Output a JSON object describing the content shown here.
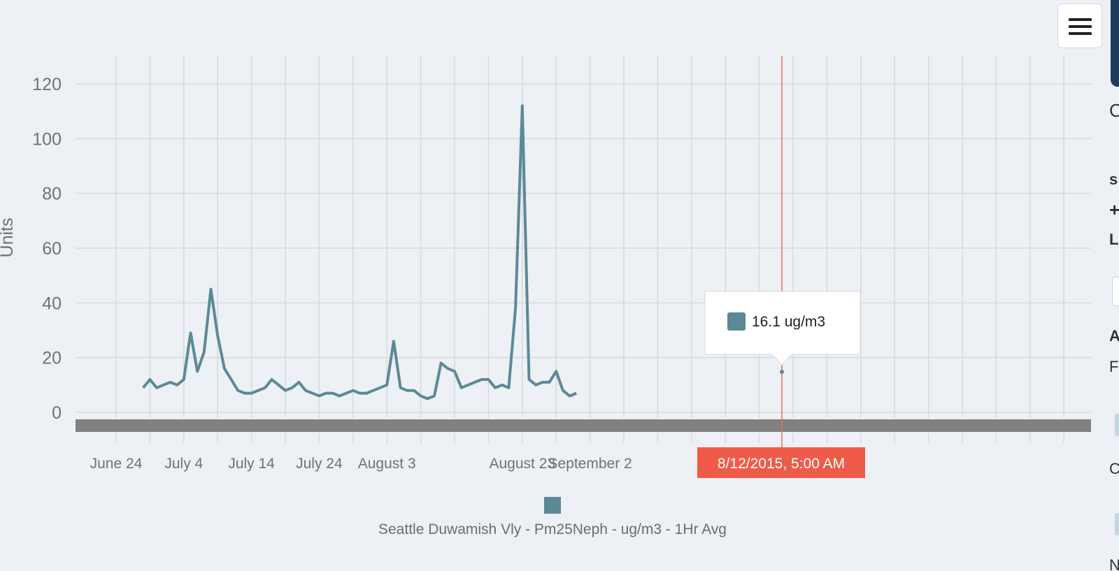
{
  "chart_data": {
    "type": "line",
    "ylabel": "Units",
    "ylim": [
      0,
      130
    ],
    "yticks": [
      0,
      20,
      40,
      60,
      80,
      100,
      120
    ],
    "xticks": [
      "June 24",
      "July 4",
      "July 14",
      "July 24",
      "August 3",
      "August 23",
      "September 2"
    ],
    "grid": true,
    "legend_position": "bottom-center",
    "series": [
      {
        "name": "Seattle Duwamish Vly - Pm25Neph - ug/m3 - 1Hr Avg",
        "color": "#5b8a96",
        "x": [
          "2015-06-28",
          "2015-06-29",
          "2015-06-30",
          "2015-07-01",
          "2015-07-02",
          "2015-07-03",
          "2015-07-04",
          "2015-07-05",
          "2015-07-06",
          "2015-07-07",
          "2015-07-08",
          "2015-07-09",
          "2015-07-10",
          "2015-07-11",
          "2015-07-12",
          "2015-07-13",
          "2015-07-14",
          "2015-07-15",
          "2015-07-16",
          "2015-07-17",
          "2015-07-18",
          "2015-07-19",
          "2015-07-20",
          "2015-07-21",
          "2015-07-22",
          "2015-07-23",
          "2015-07-24",
          "2015-07-25",
          "2015-07-26",
          "2015-07-27",
          "2015-07-28",
          "2015-07-29",
          "2015-07-30",
          "2015-07-31",
          "2015-08-01",
          "2015-08-02",
          "2015-08-03",
          "2015-08-04",
          "2015-08-05",
          "2015-08-06",
          "2015-08-07",
          "2015-08-08",
          "2015-08-09",
          "2015-08-10",
          "2015-08-11",
          "2015-08-12",
          "2015-08-13",
          "2015-08-14",
          "2015-08-15",
          "2015-08-16",
          "2015-08-17",
          "2015-08-18",
          "2015-08-19",
          "2015-08-20",
          "2015-08-21",
          "2015-08-22",
          "2015-08-23",
          "2015-08-24",
          "2015-08-25",
          "2015-08-26",
          "2015-08-27",
          "2015-08-28",
          "2015-08-29",
          "2015-08-30",
          "2015-08-31"
        ],
        "y": [
          9,
          12,
          9,
          10,
          11,
          10,
          12,
          29,
          15,
          22,
          45,
          28,
          16,
          12,
          8,
          7,
          7,
          8,
          9,
          12,
          10,
          8,
          9,
          11,
          8,
          7,
          6,
          7,
          7,
          6,
          7,
          8,
          7,
          7,
          8,
          9,
          10,
          26,
          9,
          8,
          8,
          6,
          5,
          6,
          18,
          16,
          15,
          9,
          10,
          11,
          12,
          12,
          9,
          10,
          9,
          38,
          112,
          12,
          10,
          11,
          11,
          15,
          8,
          6,
          7
        ]
      }
    ]
  },
  "crosshair": {
    "label": "8/12/2015, 5:00 AM"
  },
  "tooltip": {
    "text": "16.1 ug/m3"
  },
  "legend": {
    "label": "Seattle Duwamish Vly - Pm25Neph - ug/m3 - 1Hr Avg"
  },
  "side_panel": {
    "letters": [
      "C",
      "s",
      "+",
      "L",
      "A",
      "F",
      "C",
      "N"
    ]
  }
}
